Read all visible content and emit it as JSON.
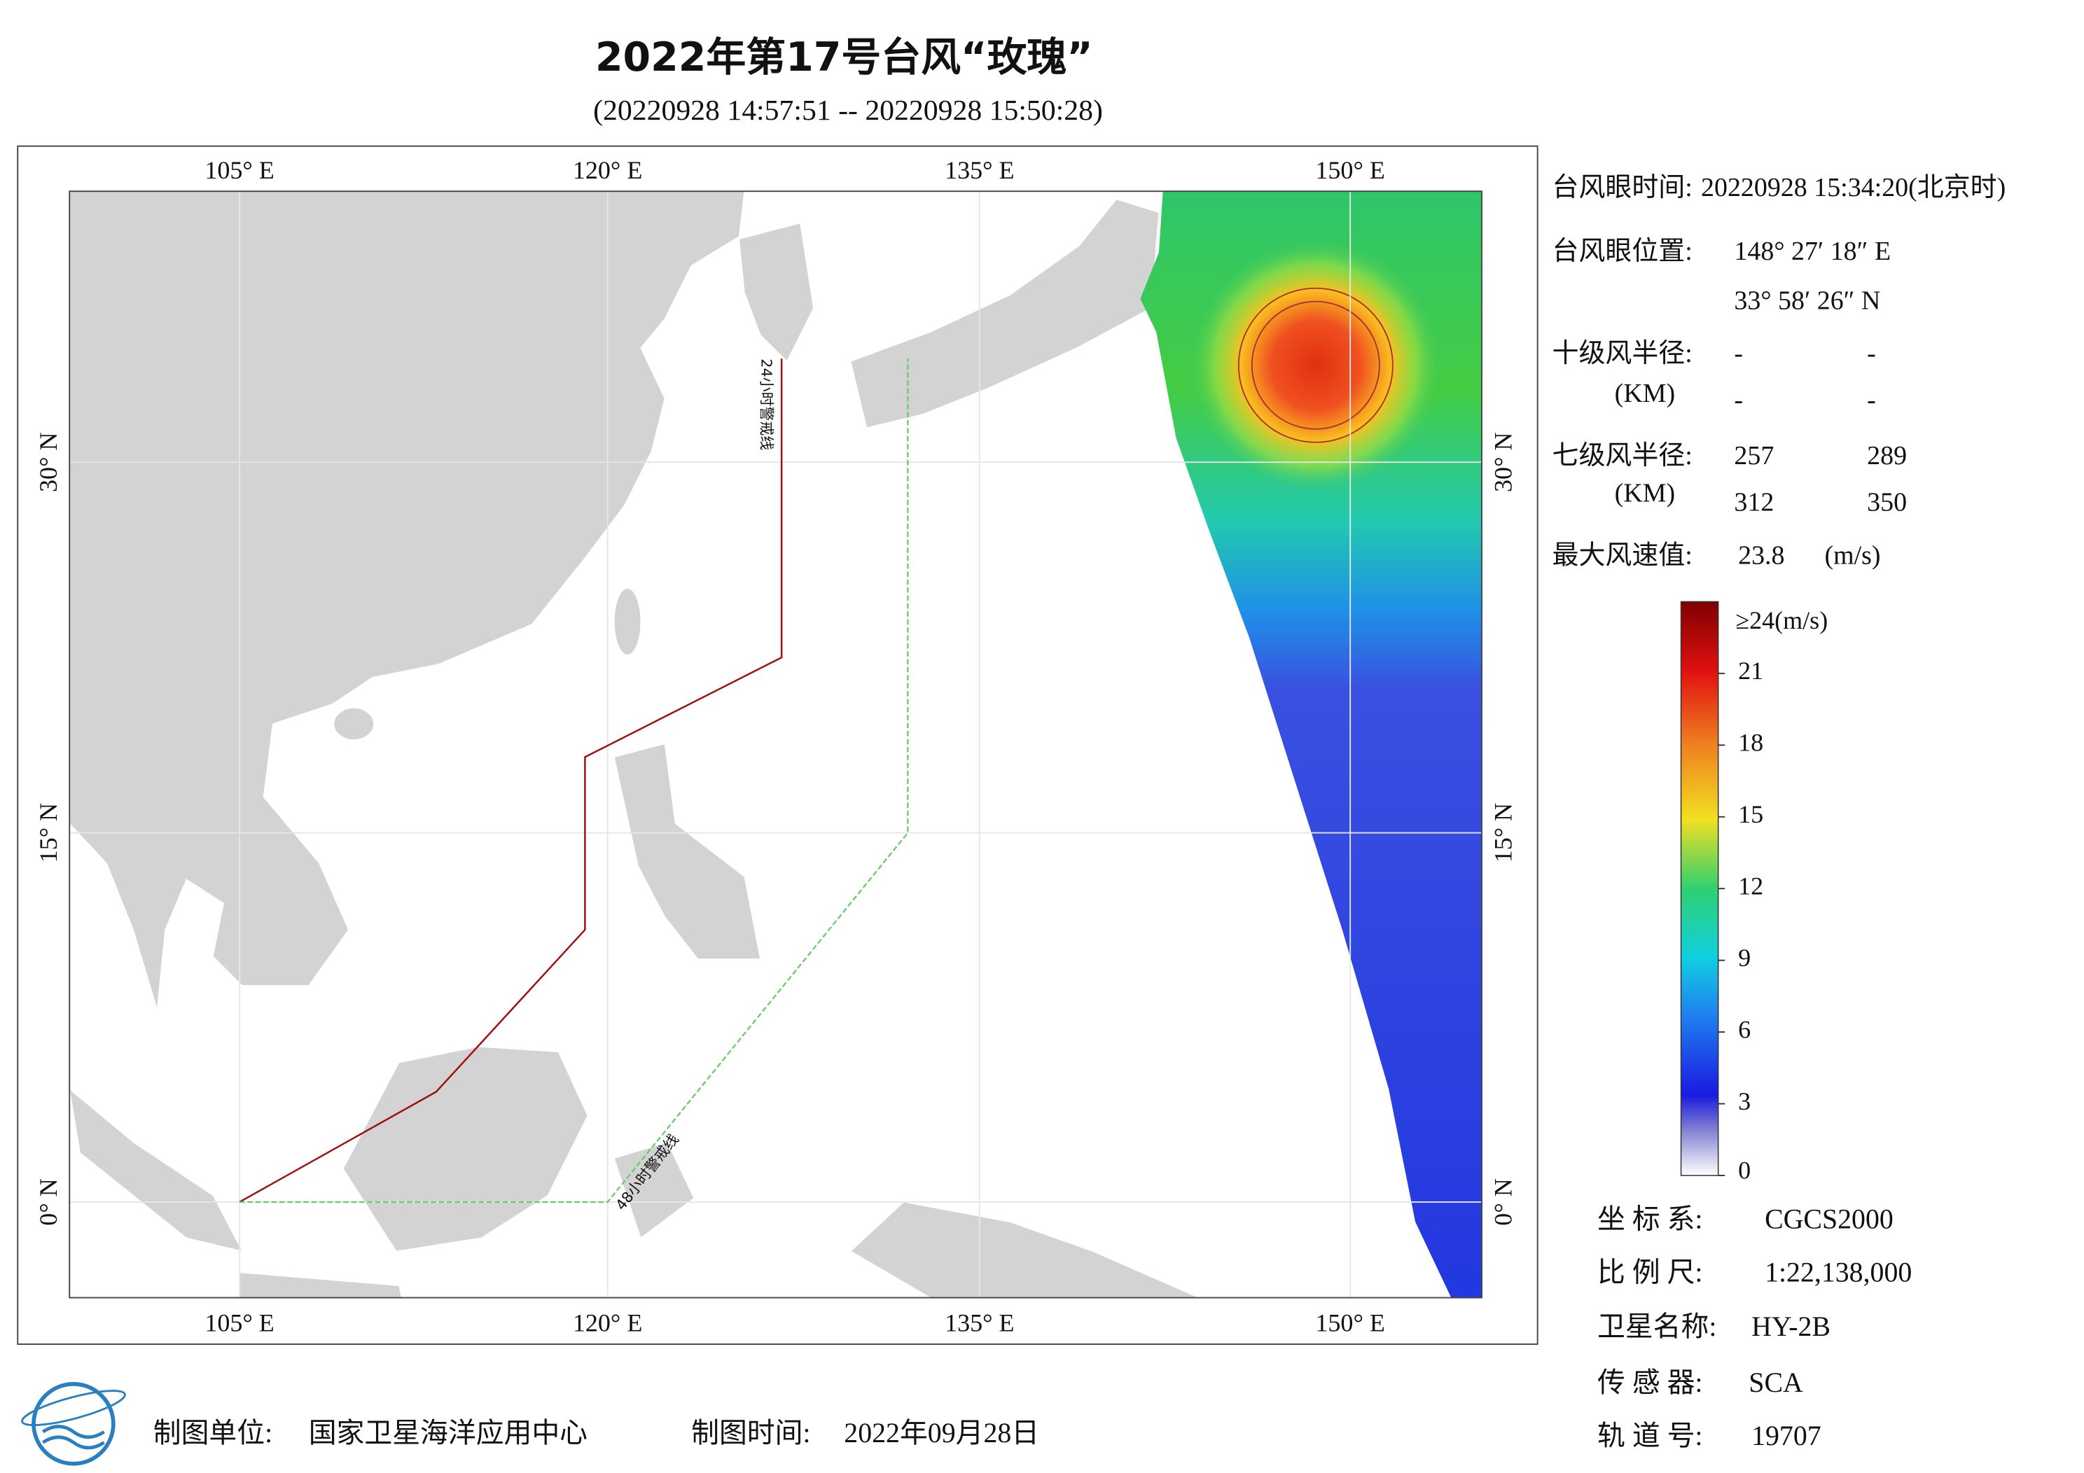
{
  "header": {
    "title": "2022年第17号台风“玫瑰”",
    "subtitle": "(20220928 14:57:51 -- 20220928 15:50:28)"
  },
  "map": {
    "lon_labels": [
      "105° E",
      "120° E",
      "135° E",
      "150° E"
    ],
    "lat_labels": [
      "30° N",
      "15° N",
      "0° N"
    ],
    "warning_lines": [
      "24小时警戒线",
      "48小时警戒线"
    ]
  },
  "info": {
    "eye_time": {
      "label": "台风眼时间:",
      "value": "20220928 15:34:20(北京时)"
    },
    "eye_position": {
      "label": "台风眼位置:",
      "lon": "148° 27′ 18″ E",
      "lat": "33° 58′ 26″ N"
    },
    "force10_radius": {
      "label": "十级风半径:",
      "unit": "(KM)",
      "values": [
        "-",
        "-",
        "-",
        "-"
      ]
    },
    "force7_radius": {
      "label": "七级风半径:",
      "unit": "(KM)",
      "values": [
        257,
        289,
        312,
        350
      ]
    },
    "max_wind": {
      "label": "最大风速值:",
      "value": 23.8,
      "unit": "(m/s)"
    }
  },
  "colorbar": {
    "range": [
      0,
      24
    ],
    "ticks": [
      0,
      3,
      6,
      9,
      12,
      15,
      18,
      21
    ],
    "max_label": "≥24(m/s)"
  },
  "footer": {
    "coordinate_system": {
      "label": "坐 标 系:",
      "value": "CGCS2000"
    },
    "scale": {
      "label": "比 例 尺:",
      "value": "1:22,138,000"
    },
    "satellite": {
      "label": "卫星名称:",
      "value": "HY-2B"
    },
    "sensor": {
      "label": "传 感 器:",
      "value": "SCA"
    },
    "orbit": {
      "label": "轨 道 号:",
      "value": "19707"
    },
    "producer": {
      "label": "制图单位:",
      "value": "国家卫星海洋应用中心"
    },
    "date": {
      "label": "制图时间:",
      "value": "2022年09月28日"
    }
  }
}
